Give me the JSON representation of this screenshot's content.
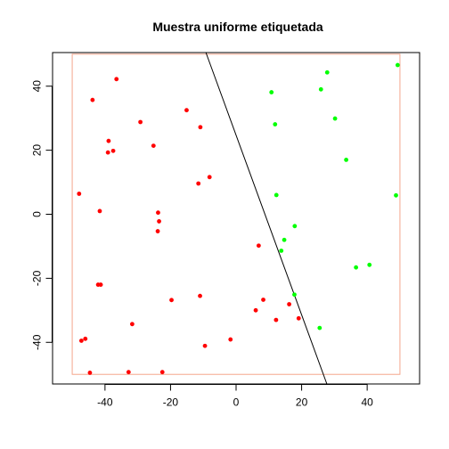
{
  "chart_data": {
    "type": "scatter",
    "title": "Muestra uniforme etiquetada",
    "xlabel": "",
    "ylabel": "",
    "xlim": [
      -56,
      56
    ],
    "ylim": [
      -53,
      50.5
    ],
    "x_ticks": [
      -40,
      -20,
      0,
      20,
      40
    ],
    "y_ticks": [
      -40,
      -20,
      0,
      20,
      40
    ],
    "grid": false,
    "bounding_square": {
      "xmin": -50,
      "xmax": 50,
      "ymin": -50,
      "ymax": 50,
      "color": "#f4a68c"
    },
    "decision_line": {
      "points": [
        [
          -9.2,
          50.5
        ],
        [
          27.7,
          -53
        ]
      ],
      "color": "#000000"
    },
    "series": [
      {
        "color": "#ff0000",
        "points": [
          [
            -36.5,
            42.2
          ],
          [
            -43.8,
            35.7
          ],
          [
            -15.1,
            32.5
          ],
          [
            -29.2,
            28.8
          ],
          [
            -10.9,
            27.2
          ],
          [
            -38.9,
            22.9
          ],
          [
            -25.2,
            21.4
          ],
          [
            -39.1,
            19.3
          ],
          [
            -37.5,
            19.8
          ],
          [
            -8.1,
            11.6
          ],
          [
            -11.5,
            9.6
          ],
          [
            -47.9,
            6.4
          ],
          [
            -41.6,
            1.0
          ],
          [
            -23.8,
            0.5
          ],
          [
            -23.5,
            -2.2
          ],
          [
            -23.9,
            -5.3
          ],
          [
            6.9,
            -9.8
          ],
          [
            -42.1,
            -22.0
          ],
          [
            -41.3,
            -22.0
          ],
          [
            -11.0,
            -25.5
          ],
          [
            -19.7,
            -26.8
          ],
          [
            8.3,
            -26.7
          ],
          [
            -31.7,
            -34.3
          ],
          [
            6.0,
            -30.0
          ],
          [
            16.2,
            -28.1
          ],
          [
            12.2,
            -33.0
          ],
          [
            19.1,
            -32.5
          ],
          [
            -46.0,
            -38.9
          ],
          [
            -47.2,
            -39.5
          ],
          [
            -1.7,
            -39.1
          ],
          [
            -9.5,
            -41.1
          ],
          [
            -44.6,
            -49.5
          ],
          [
            -32.8,
            -49.3
          ],
          [
            -22.5,
            -49.3
          ]
        ]
      },
      {
        "color": "#00ff00",
        "points": [
          [
            49.3,
            46.6
          ],
          [
            27.8,
            44.3
          ],
          [
            25.9,
            39.0
          ],
          [
            10.8,
            38.1
          ],
          [
            30.2,
            29.9
          ],
          [
            11.9,
            28.1
          ],
          [
            33.6,
            17.0
          ],
          [
            48.8,
            5.9
          ],
          [
            12.3,
            6.0
          ],
          [
            17.9,
            -3.7
          ],
          [
            14.7,
            -8.0
          ],
          [
            13.8,
            -11.4
          ],
          [
            40.7,
            -15.8
          ],
          [
            36.6,
            -16.6
          ],
          [
            17.8,
            -25.1
          ],
          [
            25.5,
            -35.5
          ]
        ]
      }
    ]
  }
}
